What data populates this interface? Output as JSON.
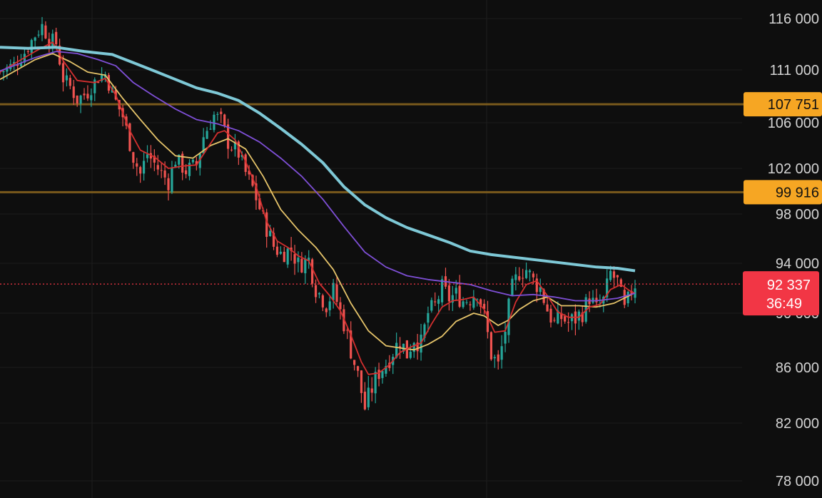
{
  "chart_data": {
    "type": "candlestick",
    "y_axis_position": "right",
    "ylim": [
      77500,
      117500
    ],
    "y_ticks": [
      116000,
      111000,
      106000,
      102000,
      98000,
      94000,
      90000,
      86000,
      82000,
      78000
    ],
    "y_tick_labels": [
      "116 000",
      "111 000",
      "106 000",
      "102 000",
      "98 000",
      "94 000",
      "90 000",
      "86 000",
      "82 000",
      "78 000"
    ],
    "horizontal_levels": [
      {
        "value": 107751,
        "label": "107 751",
        "color": "#f6a623",
        "line_color": "#7a5a1c"
      },
      {
        "value": 99916,
        "label": "99 916",
        "color": "#f6a623",
        "line_color": "#7a5a1c"
      }
    ],
    "current_price": {
      "value": 92337,
      "label": "92 337",
      "countdown": "36:49",
      "color": "#f23645"
    },
    "up_color": "#26a69a",
    "down_color": "#ef5350",
    "close_path": [
      [
        0,
        110800
      ],
      [
        4,
        111500
      ],
      [
        7,
        112700
      ],
      [
        10,
        114400
      ],
      [
        12,
        115300
      ],
      [
        14,
        114000
      ],
      [
        16,
        113600
      ],
      [
        18,
        110200
      ],
      [
        20,
        109400
      ],
      [
        22,
        108200
      ],
      [
        25,
        108900
      ],
      [
        28,
        110300
      ],
      [
        30,
        110600
      ],
      [
        33,
        108000
      ],
      [
        35,
        106600
      ],
      [
        38,
        103000
      ],
      [
        40,
        101500
      ],
      [
        42,
        103300
      ],
      [
        45,
        102000
      ],
      [
        48,
        100800
      ],
      [
        50,
        102800
      ],
      [
        53,
        101800
      ],
      [
        56,
        102300
      ],
      [
        58,
        104800
      ],
      [
        61,
        106700
      ],
      [
        63,
        106200
      ],
      [
        65,
        104300
      ],
      [
        68,
        103300
      ],
      [
        70,
        101600
      ],
      [
        72,
        100300
      ],
      [
        75,
        97600
      ],
      [
        78,
        95400
      ],
      [
        80,
        94800
      ],
      [
        83,
        95100
      ],
      [
        85,
        93900
      ],
      [
        88,
        94300
      ],
      [
        90,
        92000
      ],
      [
        93,
        90700
      ],
      [
        95,
        91800
      ],
      [
        98,
        89300
      ],
      [
        100,
        87300
      ],
      [
        102,
        85400
      ],
      [
        104,
        83100
      ],
      [
        106,
        84500
      ],
      [
        108,
        85700
      ],
      [
        110,
        86300
      ],
      [
        112,
        87200
      ],
      [
        114,
        88000
      ],
      [
        116,
        87000
      ],
      [
        118,
        88200
      ],
      [
        120,
        87700
      ],
      [
        122,
        90000
      ],
      [
        124,
        90600
      ],
      [
        126,
        92000
      ],
      [
        128,
        91200
      ],
      [
        130,
        91500
      ],
      [
        132,
        91000
      ],
      [
        134,
        91200
      ],
      [
        136,
        91800
      ],
      [
        138,
        89800
      ],
      [
        140,
        87000
      ],
      [
        142,
        86100
      ],
      [
        144,
        88800
      ],
      [
        146,
        92000
      ],
      [
        148,
        93300
      ],
      [
        150,
        93500
      ],
      [
        152,
        92600
      ],
      [
        154,
        92000
      ],
      [
        156,
        90300
      ],
      [
        158,
        89200
      ],
      [
        160,
        89700
      ],
      [
        162,
        89300
      ],
      [
        164,
        89600
      ],
      [
        166,
        90100
      ],
      [
        168,
        91300
      ],
      [
        170,
        90300
      ],
      [
        172,
        91000
      ],
      [
        174,
        93200
      ],
      [
        176,
        92500
      ],
      [
        178,
        90200
      ],
      [
        180,
        91800
      ],
      [
        181,
        92337
      ]
    ],
    "moving_averages": [
      {
        "color": "#e6c46a",
        "path": [
          [
            0,
            110100
          ],
          [
            10,
            112000
          ],
          [
            15,
            112600
          ],
          [
            20,
            111800
          ],
          [
            25,
            110800
          ],
          [
            30,
            110500
          ],
          [
            35,
            108300
          ],
          [
            40,
            106300
          ],
          [
            45,
            104500
          ],
          [
            50,
            103100
          ],
          [
            55,
            102900
          ],
          [
            60,
            104000
          ],
          [
            65,
            104600
          ],
          [
            70,
            103700
          ],
          [
            75,
            101300
          ],
          [
            80,
            98400
          ],
          [
            85,
            96700
          ],
          [
            90,
            95300
          ],
          [
            95,
            93500
          ],
          [
            100,
            90800
          ],
          [
            105,
            88700
          ],
          [
            110,
            87600
          ],
          [
            115,
            87400
          ],
          [
            118,
            87300
          ],
          [
            122,
            87700
          ],
          [
            126,
            88300
          ],
          [
            130,
            89400
          ],
          [
            135,
            90000
          ],
          [
            138,
            89800
          ],
          [
            142,
            89100
          ],
          [
            145,
            89500
          ],
          [
            148,
            90300
          ],
          [
            152,
            91000
          ],
          [
            156,
            91300
          ],
          [
            160,
            90600
          ],
          [
            165,
            90600
          ],
          [
            170,
            90500
          ],
          [
            175,
            90800
          ],
          [
            180,
            91500
          ]
        ]
      },
      {
        "color": "#d32f2f",
        "path": [
          [
            0,
            110800
          ],
          [
            10,
            112800
          ],
          [
            15,
            113700
          ],
          [
            18,
            111900
          ],
          [
            22,
            110000
          ],
          [
            27,
            109800
          ],
          [
            30,
            110200
          ],
          [
            33,
            108600
          ],
          [
            37,
            105300
          ],
          [
            40,
            103600
          ],
          [
            44,
            103000
          ],
          [
            48,
            102000
          ],
          [
            52,
            102200
          ],
          [
            56,
            102300
          ],
          [
            59,
            103700
          ],
          [
            62,
            105100
          ],
          [
            64,
            105300
          ],
          [
            67,
            104500
          ],
          [
            70,
            102600
          ],
          [
            73,
            100400
          ],
          [
            76,
            97400
          ],
          [
            79,
            95800
          ],
          [
            82,
            95300
          ],
          [
            85,
            94600
          ],
          [
            88,
            94200
          ],
          [
            91,
            92400
          ],
          [
            94,
            91400
          ],
          [
            97,
            90200
          ],
          [
            100,
            88400
          ],
          [
            103,
            86400
          ],
          [
            105,
            85500
          ],
          [
            108,
            85600
          ],
          [
            111,
            86200
          ],
          [
            114,
            87100
          ],
          [
            117,
            87500
          ],
          [
            120,
            87800
          ],
          [
            123,
            89200
          ],
          [
            126,
            90500
          ],
          [
            129,
            91000
          ],
          [
            132,
            91100
          ],
          [
            135,
            91300
          ],
          [
            138,
            90300
          ],
          [
            141,
            88600
          ],
          [
            144,
            88700
          ],
          [
            147,
            90900
          ],
          [
            150,
            92300
          ],
          [
            153,
            92600
          ],
          [
            156,
            91400
          ],
          [
            159,
            90100
          ],
          [
            162,
            89700
          ],
          [
            165,
            89700
          ],
          [
            168,
            90500
          ],
          [
            171,
            90700
          ],
          [
            174,
            91900
          ],
          [
            177,
            92300
          ],
          [
            180,
            91700
          ],
          [
            181,
            91600
          ]
        ]
      },
      {
        "color": "#7e4fd6",
        "path": [
          [
            0,
            110900
          ],
          [
            10,
            112200
          ],
          [
            16,
            112800
          ],
          [
            22,
            112600
          ],
          [
            28,
            112000
          ],
          [
            33,
            111400
          ],
          [
            38,
            109800
          ],
          [
            44,
            108500
          ],
          [
            50,
            107300
          ],
          [
            56,
            106300
          ],
          [
            62,
            105900
          ],
          [
            68,
            105300
          ],
          [
            74,
            104300
          ],
          [
            80,
            102900
          ],
          [
            86,
            101300
          ],
          [
            92,
            99300
          ],
          [
            98,
            97000
          ],
          [
            104,
            94900
          ],
          [
            110,
            93700
          ],
          [
            116,
            93000
          ],
          [
            122,
            92700
          ],
          [
            128,
            92500
          ],
          [
            134,
            92300
          ],
          [
            140,
            91800
          ],
          [
            146,
            91400
          ],
          [
            152,
            91500
          ],
          [
            158,
            91300
          ],
          [
            164,
            91000
          ],
          [
            170,
            91000
          ],
          [
            176,
            91200
          ],
          [
            181,
            91600
          ]
        ]
      },
      {
        "color": "#7ec8d6",
        "path": [
          [
            0,
            113200
          ],
          [
            8,
            113100
          ],
          [
            16,
            113200
          ],
          [
            24,
            112800
          ],
          [
            32,
            112500
          ],
          [
            38,
            111700
          ],
          [
            44,
            110900
          ],
          [
            50,
            110100
          ],
          [
            56,
            109300
          ],
          [
            62,
            108800
          ],
          [
            68,
            108100
          ],
          [
            74,
            106900
          ],
          [
            80,
            105500
          ],
          [
            86,
            104100
          ],
          [
            92,
            102500
          ],
          [
            98,
            100400
          ],
          [
            104,
            98800
          ],
          [
            110,
            97700
          ],
          [
            116,
            96900
          ],
          [
            122,
            96300
          ],
          [
            128,
            95700
          ],
          [
            134,
            95000
          ],
          [
            140,
            94700
          ],
          [
            146,
            94500
          ],
          [
            152,
            94300
          ],
          [
            158,
            94100
          ],
          [
            164,
            93900
          ],
          [
            170,
            93700
          ],
          [
            176,
            93600
          ],
          [
            181,
            93400
          ]
        ]
      }
    ],
    "n_candles": 182
  }
}
